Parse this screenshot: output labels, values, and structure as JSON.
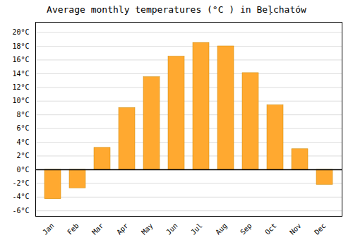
{
  "chart_data": {
    "type": "bar",
    "title": "Average monthly temperatures (°C ) in Beļchatów",
    "categories": [
      "Jan",
      "Feb",
      "Mar",
      "Apr",
      "May",
      "Jun",
      "Jul",
      "Aug",
      "Sep",
      "Oct",
      "Nov",
      "Dec"
    ],
    "values": [
      -4.3,
      -2.7,
      3.2,
      9.0,
      13.5,
      16.5,
      18.5,
      18.0,
      14.1,
      9.4,
      3.0,
      -2.2
    ],
    "color": "#FFA930",
    "ylim": [
      -6.8,
      21.5
    ],
    "yticks": [
      {
        "value": -6,
        "label": "-6°C"
      },
      {
        "value": -4,
        "label": "-4°C"
      },
      {
        "value": -2,
        "label": "-2°C"
      },
      {
        "value": 0,
        "label": "0°C"
      },
      {
        "value": 2,
        "label": "2°C"
      },
      {
        "value": 4,
        "label": "4°C"
      },
      {
        "value": 6,
        "label": "6°C"
      },
      {
        "value": 8,
        "label": "8°C"
      },
      {
        "value": 10,
        "label": "10°C"
      },
      {
        "value": 12,
        "label": "12°C"
      },
      {
        "value": 14,
        "label": "14°C"
      },
      {
        "value": 16,
        "label": "16°C"
      },
      {
        "value": 18,
        "label": "18°C"
      },
      {
        "value": 20,
        "label": "20°C"
      }
    ],
    "grid": true
  }
}
